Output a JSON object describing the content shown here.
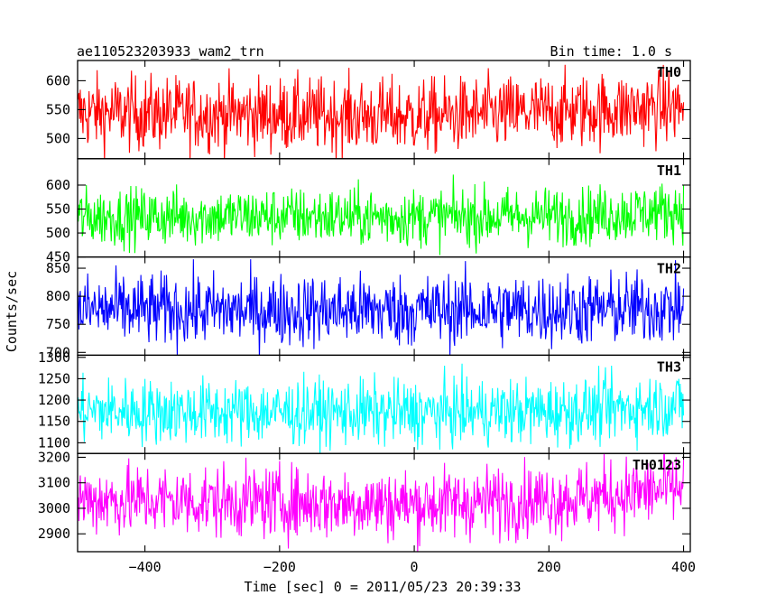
{
  "header": {
    "title": "ae110523203933_wam2_trn",
    "bin_time": "Bin time: 1.0 s"
  },
  "chart_data": {
    "type": "line",
    "xlabel": "Time [sec] 0 = 2011/05/23 20:39:33",
    "ylabel": "Counts/sec",
    "xlim": [
      -500,
      410
    ],
    "xticks": [
      -400,
      -200,
      0,
      200,
      400
    ],
    "x_start": -500,
    "x_end": 400,
    "x_step": 1,
    "panels": [
      {
        "name": "TH0",
        "color": "#ff0000",
        "ylim": [
          465,
          635
        ],
        "yticks": [
          500,
          550,
          600
        ],
        "mean": 545,
        "amplitude": 32,
        "trend": [
          [
            -500,
            545
          ],
          [
            -250,
            542
          ],
          [
            0,
            538
          ],
          [
            250,
            548
          ],
          [
            400,
            555
          ]
        ]
      },
      {
        "name": "TH1",
        "color": "#00ff00",
        "ylim": [
          450,
          655
        ],
        "yticks": [
          450,
          500,
          550,
          600
        ],
        "mean": 535,
        "amplitude": 30,
        "trend": [
          [
            -500,
            533
          ],
          [
            -250,
            535
          ],
          [
            0,
            533
          ],
          [
            250,
            536
          ],
          [
            400,
            548
          ]
        ]
      },
      {
        "name": "TH2",
        "color": "#0000ff",
        "ylim": [
          695,
          870
        ],
        "yticks": [
          700,
          750,
          800,
          850
        ],
        "mean": 775,
        "amplitude": 32,
        "trend": [
          [
            -500,
            776
          ],
          [
            -250,
            775
          ],
          [
            0,
            775
          ],
          [
            250,
            776
          ],
          [
            400,
            780
          ]
        ]
      },
      {
        "name": "TH3",
        "color": "#00ffff",
        "ylim": [
          1075,
          1305
        ],
        "yticks": [
          1100,
          1150,
          1200,
          1250,
          1300
        ],
        "mean": 1175,
        "amplitude": 38,
        "trend": [
          [
            -500,
            1175
          ],
          [
            -250,
            1172
          ],
          [
            0,
            1170
          ],
          [
            250,
            1175
          ],
          [
            400,
            1190
          ]
        ]
      },
      {
        "name": "TH0123",
        "color": "#ff00ff",
        "ylim": [
          2830,
          3215
        ],
        "yticks": [
          2900,
          3000,
          3100,
          3200
        ],
        "mean": 3030,
        "amplitude": 70,
        "trend": [
          [
            -500,
            3035
          ],
          [
            -250,
            3025
          ],
          [
            0,
            3015
          ],
          [
            250,
            3040
          ],
          [
            400,
            3080
          ]
        ]
      }
    ]
  }
}
